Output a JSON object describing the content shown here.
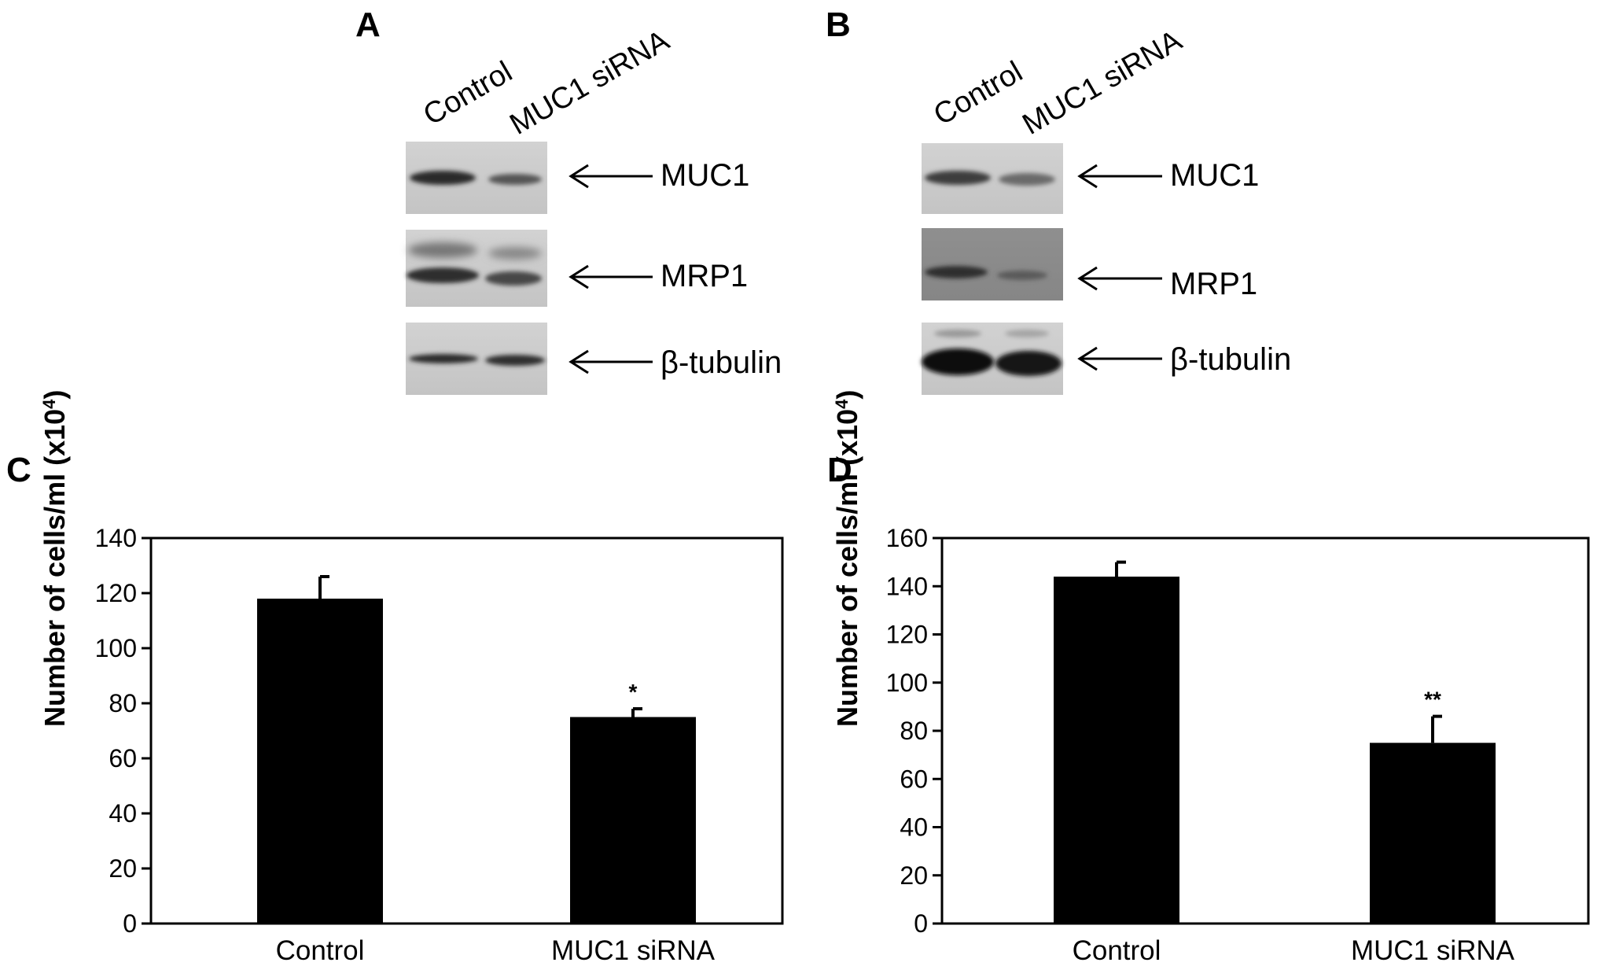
{
  "panels": {
    "A": "A",
    "B": "B",
    "C": "C",
    "D": "D"
  },
  "blots": [
    {
      "panel": "A",
      "lanes": [
        "Control",
        "MUC1 siRNA"
      ],
      "bands": [
        "MUC1",
        "MRP1",
        "β-tubulin"
      ]
    },
    {
      "panel": "B",
      "lanes": [
        "Control",
        "MUC1 siRNA"
      ],
      "bands": [
        "MUC1",
        "MRP1",
        "β-tubulin"
      ]
    }
  ],
  "chart_data": [
    {
      "panel": "C",
      "type": "bar",
      "categories": [
        "Control",
        "MUC1 siRNA"
      ],
      "values": [
        118,
        75
      ],
      "errors": [
        8,
        3
      ],
      "significance": [
        "",
        "*"
      ],
      "ylabel_main": "Number of cells/ml (x10",
      "ylabel_sup": "4",
      "ylabel_end": ")",
      "ylim": [
        0,
        140
      ],
      "yticks": [
        0,
        20,
        40,
        60,
        80,
        100,
        120,
        140
      ],
      "bar_color": "#000000",
      "grid": false
    },
    {
      "panel": "D",
      "type": "bar",
      "categories": [
        "Control",
        "MUC1 siRNA"
      ],
      "values": [
        144,
        75
      ],
      "errors": [
        6,
        11
      ],
      "significance": [
        "",
        "**"
      ],
      "ylabel_main": "Number of cells/ml (x10",
      "ylabel_sup": "4",
      "ylabel_end": ")",
      "ylim": [
        0,
        160
      ],
      "yticks": [
        0,
        20,
        40,
        60,
        80,
        100,
        120,
        140,
        160
      ],
      "bar_color": "#000000",
      "grid": false
    }
  ]
}
